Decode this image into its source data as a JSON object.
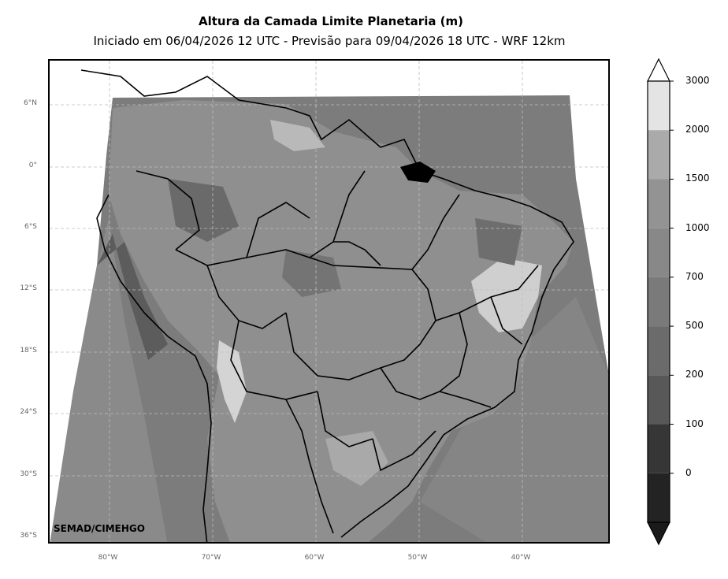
{
  "header": {
    "title": "Altura da Camada Limite Planetaria (m)",
    "subtitle": "Iniciado em 06/04/2026 12 UTC - Previsão para 09/04/2026 18 UTC - WRF 12km"
  },
  "map": {
    "lat_labels": [
      "6°N",
      "0°",
      "6°S",
      "12°S",
      "18°S",
      "24°S",
      "30°S",
      "36°S"
    ],
    "lon_labels": [
      "80°W",
      "70°W",
      "60°W",
      "50°W",
      "40°W"
    ],
    "credit": "SEMAD/CIMEHGO"
  },
  "colorbar": {
    "labels": [
      "3000",
      "2000",
      "1500",
      "1000",
      "700",
      "500",
      "200",
      "100",
      "0"
    ],
    "colors": [
      "#e4e4e4",
      "#aaaaaa",
      "#939393",
      "#888888",
      "#7a7a7a",
      "#6b6b6b",
      "#585858",
      "#363636",
      "#232323"
    ],
    "over_color": "#ffffff",
    "under_color": "#1a1a1a"
  }
}
